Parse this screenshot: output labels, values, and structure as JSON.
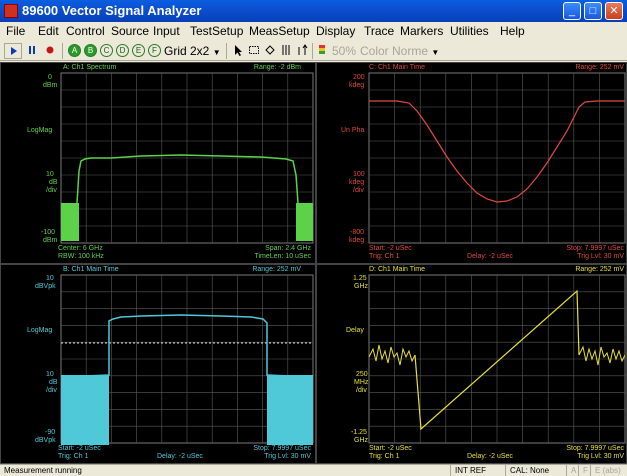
{
  "window": {
    "title": "89600 Vector Signal Analyzer",
    "buttons": [
      "_",
      "□",
      "✕"
    ]
  },
  "menu": [
    "File",
    "Edit",
    "Control",
    "Source",
    "Input",
    "TestSetup",
    "MeasSetup",
    "Display",
    "Trace",
    "Markers",
    "Utilities",
    "Help"
  ],
  "toolbar": {
    "trace_buttons": [
      "A",
      "B",
      "C",
      "D",
      "E",
      "F"
    ],
    "layout": "Grid 2x2",
    "opacity": "50%",
    "color_mode": "Color Norme"
  },
  "traces": {
    "A": {
      "title": "A: Ch1 Spectrum",
      "range": "Range: -2 dBm",
      "y_top_value": "0",
      "y_top_unit": "dBm",
      "format": "LogMag",
      "scale_value": "10",
      "scale_unit": "dB",
      "scale_per": "/div",
      "y_bottom_value": "-100",
      "y_bottom_unit": "dBm",
      "footer_left_1": "Center: 6 GHz",
      "footer_left_2": "RBW: 100 kHz",
      "footer_right_1": "Span: 2.4 GHz",
      "footer_right_2": "TimeLen: 10 uSec",
      "color": "#5ed14a"
    },
    "B": {
      "title": "B: Ch1 Main Time",
      "range": "Range: 252 mV",
      "y_top_value": "10",
      "y_top_unit": "dBVpk",
      "format": "LogMag",
      "scale_value": "10",
      "scale_unit": "dB",
      "scale_per": "/div",
      "y_bottom_value": "-90",
      "y_bottom_unit": "dBVpk",
      "footer_left_1": "Start: -2 uSec",
      "footer_left_2": "Trig: Ch 1",
      "footer_mid": "Delay: -2 uSec",
      "footer_right_1": "Stop: 7.9997 uSec",
      "footer_right_2": "Trig Lvl: 30 mV",
      "color": "#4fc8d8"
    },
    "C": {
      "title": "C: Ch1 Main Time",
      "range": "Range: 252 mV",
      "y_top_value": "200",
      "y_top_unit": "kdeg",
      "format": "Un Pha",
      "scale_value": "100",
      "scale_unit": "kdeg",
      "scale_per": "/div",
      "y_bottom_value": "-800",
      "y_bottom_unit": "kdeg",
      "footer_left_1": "Start: -2 uSec",
      "footer_left_2": "Trig: Ch 1",
      "footer_mid": "Delay: -2 uSec",
      "footer_right_1": "Stop: 7.9997 uSec",
      "footer_right_2": "Trig Lvl: 30 mV",
      "color": "#e04a3c"
    },
    "D": {
      "title": "D: Ch1 Main Time",
      "range": "Range: 252 mV",
      "y_top_value": "1.25",
      "y_top_unit": "GHz",
      "format": "Delay",
      "scale_value": "250",
      "scale_unit": "MHz",
      "scale_per": "/div",
      "y_bottom_value": "-1.25",
      "y_bottom_unit": "GHz",
      "footer_left_1": "Start: -2 uSec",
      "footer_left_2": "Trig: Ch 1",
      "footer_mid": "Delay: -2 uSec",
      "footer_right_1": "Stop: 7.9997 uSec",
      "footer_right_2": "Trig Lvl: 30 mV",
      "color": "#e8e030"
    }
  },
  "status": {
    "message": "Measurement running",
    "ref": "INT REF",
    "cal": "CAL: None",
    "flags": [
      "A",
      "F",
      "E (abs)"
    ]
  }
}
